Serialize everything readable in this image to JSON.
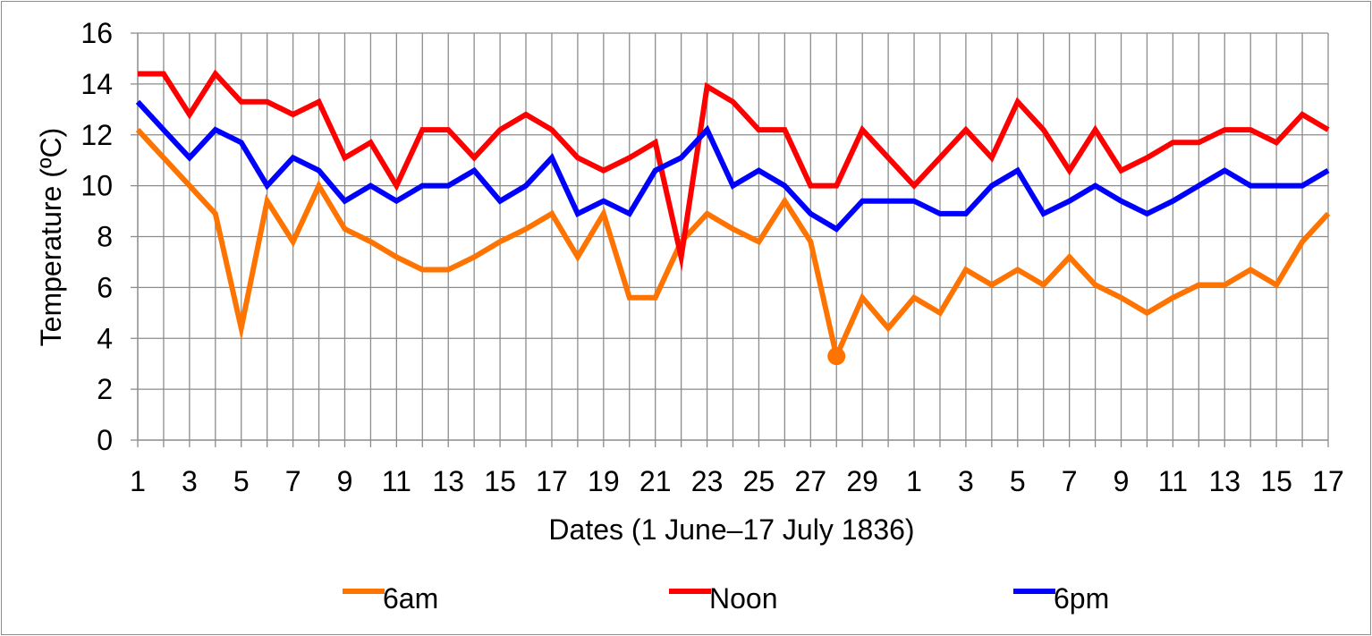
{
  "chart_data": {
    "type": "line",
    "xlabel": "Dates (1 June–17 July 1836)",
    "ylabel": "Temperature (ºC)",
    "ylim": [
      0,
      16
    ],
    "yticks": [
      "0",
      "2",
      "4",
      "6",
      "8",
      "10",
      "12",
      "14",
      "16"
    ],
    "categories": [
      "1",
      "2",
      "3",
      "4",
      "5",
      "6",
      "7",
      "8",
      "9",
      "10",
      "11",
      "12",
      "13",
      "14",
      "15",
      "16",
      "17",
      "18",
      "19",
      "20",
      "21",
      "22",
      "23",
      "24",
      "25",
      "26",
      "27",
      "28",
      "29",
      "30",
      "1",
      "2",
      "3",
      "4",
      "5",
      "6",
      "7",
      "8",
      "9",
      "10",
      "11",
      "12",
      "13",
      "14",
      "15",
      "16",
      "17"
    ],
    "xtick_labels": [
      "1",
      "3",
      "5",
      "7",
      "9",
      "11",
      "13",
      "15",
      "17",
      "19",
      "21",
      "23",
      "25",
      "27",
      "29",
      "1",
      "3",
      "5",
      "7",
      "9",
      "11",
      "13",
      "15",
      "17"
    ],
    "grid": true,
    "legend_position": "bottom",
    "series": [
      {
        "name": "6am",
        "color": "#ff7300",
        "values": [
          12.2,
          11.1,
          10.0,
          8.9,
          4.4,
          9.4,
          7.8,
          10.0,
          8.3,
          7.8,
          7.2,
          6.7,
          6.7,
          7.2,
          7.8,
          8.3,
          8.9,
          7.2,
          8.9,
          5.6,
          5.6,
          7.8,
          8.9,
          8.3,
          7.8,
          9.4,
          7.8,
          3.3,
          5.6,
          4.4,
          5.6,
          5.0,
          6.7,
          6.1,
          6.7,
          6.1,
          7.2,
          6.1,
          5.6,
          5.0,
          5.6,
          6.1,
          6.1,
          6.7,
          6.1,
          7.8,
          8.9
        ],
        "highlight_index": 27
      },
      {
        "name": "Noon",
        "color": "#ff0000",
        "values": [
          14.4,
          14.4,
          12.8,
          14.4,
          13.3,
          13.3,
          12.8,
          13.3,
          11.1,
          11.7,
          10.0,
          12.2,
          12.2,
          11.1,
          12.2,
          12.8,
          12.2,
          11.1,
          10.6,
          11.1,
          11.7,
          7.2,
          13.9,
          13.3,
          12.2,
          12.2,
          10.0,
          10.0,
          12.2,
          11.1,
          10.0,
          11.1,
          12.2,
          11.1,
          13.3,
          12.2,
          10.6,
          12.2,
          10.6,
          11.1,
          11.7,
          11.7,
          12.2,
          12.2,
          11.7,
          12.8,
          12.2
        ]
      },
      {
        "name": "6pm",
        "color": "#0000ff",
        "values": [
          13.3,
          12.2,
          11.1,
          12.2,
          11.7,
          10.0,
          11.1,
          10.6,
          9.4,
          10.0,
          9.4,
          10.0,
          10.0,
          10.6,
          9.4,
          10.0,
          11.1,
          8.9,
          9.4,
          8.9,
          10.6,
          11.1,
          12.2,
          10.0,
          10.6,
          10.0,
          8.9,
          8.3,
          9.4,
          9.4,
          9.4,
          8.9,
          8.9,
          10.0,
          10.6,
          8.9,
          9.4,
          10.0,
          9.4,
          8.9,
          9.4,
          10.0,
          10.6,
          10.0,
          10.0,
          10.0,
          10.6
        ]
      }
    ]
  }
}
